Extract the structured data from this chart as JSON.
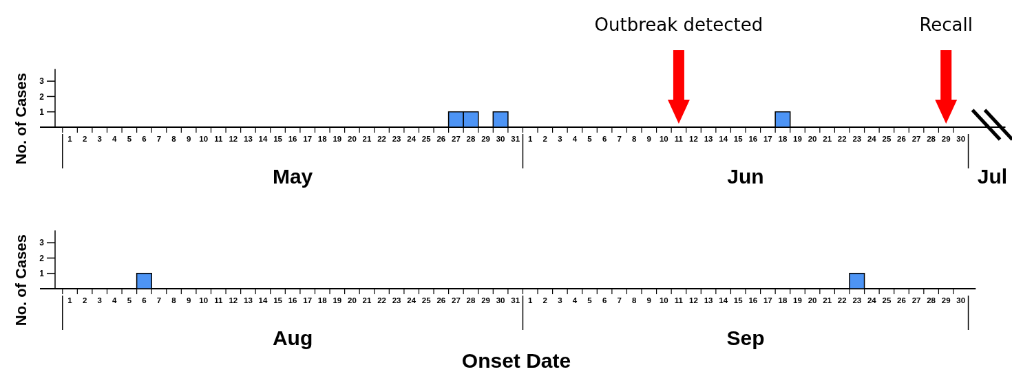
{
  "chart_data": [
    {
      "type": "bar",
      "ylabel": "No. of Cases",
      "xlim": [
        "--04-30",
        "--07-03"
      ],
      "ylim": [
        0,
        3.8
      ],
      "yticks": [
        1,
        2,
        3
      ],
      "ref_lines": [
        {
          "axis": "x",
          "value": "--06-11",
          "label": "Outbreak detected",
          "color": "#ff0000"
        },
        {
          "axis": "x",
          "value": "--06-29",
          "label": "Recall",
          "color": "#ff0000"
        }
      ],
      "xticks": [
        {
          "value": "--05-01",
          "label": "1"
        },
        {
          "value": "--05-02",
          "label": "2"
        },
        {
          "value": "--05-03",
          "label": "3"
        },
        {
          "value": "--05-04",
          "label": "4"
        },
        {
          "value": "--05-05",
          "label": "5"
        },
        {
          "value": "--05-06",
          "label": "6"
        },
        {
          "value": "--05-07",
          "label": "7"
        },
        {
          "value": "--05-08",
          "label": "8"
        },
        {
          "value": "--05-09",
          "label": "9"
        },
        {
          "value": "--05-10",
          "label": "10"
        },
        {
          "value": "--05-11",
          "label": "11"
        },
        {
          "value": "--05-12",
          "label": "12"
        },
        {
          "value": "--05-13",
          "label": "13"
        },
        {
          "value": "--05-14",
          "label": "14"
        },
        {
          "value": "--05-15",
          "label": "15"
        },
        {
          "value": "--05-16",
          "label": "16"
        },
        {
          "value": "--05-17",
          "label": "17"
        },
        {
          "value": "--05-18",
          "label": "18"
        },
        {
          "value": "--05-19",
          "label": "19"
        },
        {
          "value": "--05-20",
          "label": "20"
        },
        {
          "value": "--05-21",
          "label": "21"
        },
        {
          "value": "--05-22",
          "label": "22"
        },
        {
          "value": "--05-23",
          "label": "23"
        },
        {
          "value": "--05-24",
          "label": "24"
        },
        {
          "value": "--05-25",
          "label": "25"
        },
        {
          "value": "--05-26",
          "label": "26"
        },
        {
          "value": "--05-27",
          "label": "27"
        },
        {
          "value": "--05-28",
          "label": "28"
        },
        {
          "value": "--05-29",
          "label": "29"
        },
        {
          "value": "--05-30",
          "label": "30"
        },
        {
          "value": "--05-31",
          "label": "31"
        },
        {
          "value": "--06-01",
          "label": "1"
        },
        {
          "value": "--06-02",
          "label": "2"
        },
        {
          "value": "--06-03",
          "label": "3"
        },
        {
          "value": "--06-04",
          "label": "4"
        },
        {
          "value": "--06-05",
          "label": "5"
        },
        {
          "value": "--06-06",
          "label": "6"
        },
        {
          "value": "--06-07",
          "label": "7"
        },
        {
          "value": "--06-08",
          "label": "8"
        },
        {
          "value": "--06-09",
          "label": "9"
        },
        {
          "value": "--06-10",
          "label": "10"
        },
        {
          "value": "--06-11",
          "label": "11"
        },
        {
          "value": "--06-12",
          "label": "12"
        },
        {
          "value": "--06-13",
          "label": "13"
        },
        {
          "value": "--06-14",
          "label": "14"
        },
        {
          "value": "--06-15",
          "label": "15"
        },
        {
          "value": "--06-16",
          "label": "16"
        },
        {
          "value": "--06-17",
          "label": "17"
        },
        {
          "value": "--06-18",
          "label": "18"
        },
        {
          "value": "--06-19",
          "label": "19"
        },
        {
          "value": "--06-20",
          "label": "20"
        },
        {
          "value": "--06-21",
          "label": "21"
        },
        {
          "value": "--06-22",
          "label": "22"
        },
        {
          "value": "--06-23",
          "label": "23"
        },
        {
          "value": "--06-24",
          "label": "24"
        },
        {
          "value": "--06-25",
          "label": "25"
        },
        {
          "value": "--06-26",
          "label": "26"
        },
        {
          "value": "--06-27",
          "label": "27"
        },
        {
          "value": "--06-28",
          "label": "28"
        },
        {
          "value": "--06-29",
          "label": "29"
        },
        {
          "value": "--06-30",
          "label": "30"
        }
      ],
      "series": [
        {
          "color": "#4d94f5",
          "x": [
            "--05-27",
            "--05-28",
            "--05-30",
            "--06-18"
          ],
          "values": [
            1,
            1,
            1,
            1
          ]
        }
      ],
      "annotations": [
        "May",
        "Jun",
        "Jul"
      ]
    },
    {
      "type": "bar",
      "ylabel": "No. of Cases",
      "xlabel": "Onset Date",
      "xlim": [
        "--07-31",
        "--10-01"
      ],
      "ylim": [
        0,
        3.8
      ],
      "yticks": [
        1,
        2,
        3
      ],
      "xticks": [
        {
          "value": "--08-01",
          "label": "1"
        },
        {
          "value": "--08-02",
          "label": "2"
        },
        {
          "value": "--08-03",
          "label": "3"
        },
        {
          "value": "--08-04",
          "label": "4"
        },
        {
          "value": "--08-05",
          "label": "5"
        },
        {
          "value": "--08-06",
          "label": "6"
        },
        {
          "value": "--08-07",
          "label": "7"
        },
        {
          "value": "--08-08",
          "label": "8"
        },
        {
          "value": "--08-09",
          "label": "9"
        },
        {
          "value": "--08-10",
          "label": "10"
        },
        {
          "value": "--08-11",
          "label": "11"
        },
        {
          "value": "--08-12",
          "label": "12"
        },
        {
          "value": "--08-13",
          "label": "13"
        },
        {
          "value": "--08-14",
          "label": "14"
        },
        {
          "value": "--08-15",
          "label": "15"
        },
        {
          "value": "--08-16",
          "label": "16"
        },
        {
          "value": "--08-17",
          "label": "17"
        },
        {
          "value": "--08-18",
          "label": "18"
        },
        {
          "value": "--08-19",
          "label": "19"
        },
        {
          "value": "--08-20",
          "label": "20"
        },
        {
          "value": "--08-21",
          "label": "21"
        },
        {
          "value": "--08-22",
          "label": "22"
        },
        {
          "value": "--08-23",
          "label": "23"
        },
        {
          "value": "--08-24",
          "label": "24"
        },
        {
          "value": "--08-25",
          "label": "25"
        },
        {
          "value": "--08-26",
          "label": "26"
        },
        {
          "value": "--08-27",
          "label": "27"
        },
        {
          "value": "--08-28",
          "label": "28"
        },
        {
          "value": "--08-29",
          "label": "29"
        },
        {
          "value": "--08-30",
          "label": "30"
        },
        {
          "value": "--08-31",
          "label": "31"
        },
        {
          "value": "--09-01",
          "label": "1"
        },
        {
          "value": "--09-02",
          "label": "2"
        },
        {
          "value": "--09-03",
          "label": "3"
        },
        {
          "value": "--09-04",
          "label": "4"
        },
        {
          "value": "--09-05",
          "label": "5"
        },
        {
          "value": "--09-06",
          "label": "6"
        },
        {
          "value": "--09-07",
          "label": "7"
        },
        {
          "value": "--09-08",
          "label": "8"
        },
        {
          "value": "--09-09",
          "label": "9"
        },
        {
          "value": "--09-10",
          "label": "10"
        },
        {
          "value": "--09-11",
          "label": "11"
        },
        {
          "value": "--09-12",
          "label": "12"
        },
        {
          "value": "--09-13",
          "label": "13"
        },
        {
          "value": "--09-14",
          "label": "14"
        },
        {
          "value": "--09-15",
          "label": "15"
        },
        {
          "value": "--09-16",
          "label": "16"
        },
        {
          "value": "--09-17",
          "label": "17"
        },
        {
          "value": "--09-18",
          "label": "18"
        },
        {
          "value": "--09-19",
          "label": "19"
        },
        {
          "value": "--09-20",
          "label": "20"
        },
        {
          "value": "--09-21",
          "label": "21"
        },
        {
          "value": "--09-22",
          "label": "22"
        },
        {
          "value": "--09-23",
          "label": "23"
        },
        {
          "value": "--09-24",
          "label": "24"
        },
        {
          "value": "--09-25",
          "label": "25"
        },
        {
          "value": "--09-26",
          "label": "26"
        },
        {
          "value": "--09-27",
          "label": "27"
        },
        {
          "value": "--09-28",
          "label": "28"
        },
        {
          "value": "--09-29",
          "label": "29"
        },
        {
          "value": "--09-30",
          "label": "30"
        }
      ],
      "series": [
        {
          "color": "#4d94f5",
          "x": [
            "--08-06",
            "--09-23"
          ],
          "values": [
            1,
            1
          ]
        }
      ],
      "annotations": [
        "Aug",
        "Sep"
      ]
    }
  ]
}
